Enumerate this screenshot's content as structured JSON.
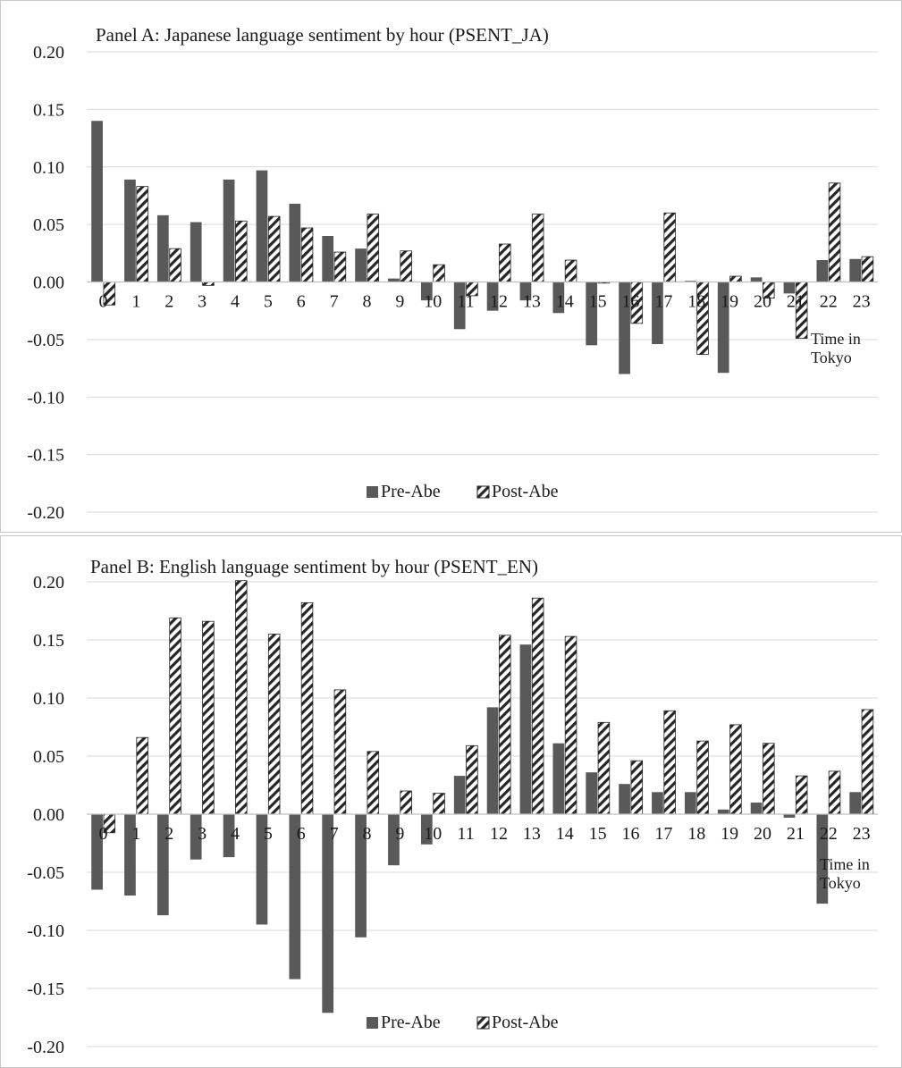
{
  "chart_data": [
    {
      "type": "bar",
      "title": "Panel A: Japanese language sentiment by hour (PSENT_JA)",
      "xlabel": "Time in Tokyo",
      "categories": [
        "0",
        "1",
        "2",
        "3",
        "4",
        "5",
        "6",
        "7",
        "8",
        "9",
        "10",
        "11",
        "12",
        "13",
        "14",
        "15",
        "16",
        "17",
        "18",
        "19",
        "20",
        "21",
        "22",
        "23"
      ],
      "ylim": [
        -0.2,
        0.2
      ],
      "yticks": [
        "0.20",
        "0.15",
        "0.10",
        "0.05",
        "0.00",
        "-0.05",
        "-0.10",
        "-0.15",
        "-0.20"
      ],
      "grid": true,
      "legend_position": "bottom",
      "series": [
        {
          "name": "Pre-Abe",
          "color": "#595959",
          "values": [
            0.14,
            0.089,
            0.058,
            0.052,
            0.089,
            0.097,
            0.068,
            0.04,
            0.029,
            0.003,
            -0.016,
            -0.041,
            -0.025,
            -0.016,
            -0.027,
            -0.055,
            -0.08,
            -0.054,
            0.001,
            -0.079,
            0.004,
            -0.01,
            0.019,
            0.02
          ]
        },
        {
          "name": "Post-Abe",
          "color": "#262626",
          "pattern": "hatch",
          "values": [
            -0.02,
            0.083,
            0.029,
            -0.003,
            0.053,
            0.057,
            0.047,
            0.026,
            0.059,
            0.027,
            0.015,
            -0.012,
            0.033,
            0.059,
            0.019,
            -0.001,
            -0.036,
            0.06,
            -0.063,
            0.005,
            -0.014,
            -0.049,
            0.086,
            0.022
          ]
        }
      ]
    },
    {
      "type": "bar",
      "title": "Panel B: English language sentiment by hour (PSENT_EN)",
      "xlabel": "Time in Tokyo",
      "categories": [
        "0",
        "1",
        "2",
        "3",
        "4",
        "5",
        "6",
        "7",
        "8",
        "9",
        "10",
        "11",
        "12",
        "13",
        "14",
        "15",
        "16",
        "17",
        "18",
        "19",
        "20",
        "21",
        "22",
        "23"
      ],
      "ylim": [
        -0.2,
        0.2
      ],
      "yticks": [
        "0.20",
        "0.15",
        "0.10",
        "0.05",
        "0.00",
        "-0.05",
        "-0.10",
        "-0.15",
        "-0.20"
      ],
      "grid": true,
      "legend_position": "bottom",
      "series": [
        {
          "name": "Pre-Abe",
          "color": "#595959",
          "values": [
            -0.065,
            -0.07,
            -0.087,
            -0.039,
            -0.037,
            -0.095,
            -0.142,
            -0.171,
            -0.106,
            -0.044,
            -0.026,
            0.033,
            0.092,
            0.146,
            0.061,
            0.036,
            0.026,
            0.019,
            0.019,
            0.004,
            0.01,
            -0.003,
            -0.077,
            0.019
          ]
        },
        {
          "name": "Post-Abe",
          "color": "#262626",
          "pattern": "hatch",
          "values": [
            -0.016,
            0.066,
            0.169,
            0.166,
            0.201,
            0.155,
            0.182,
            0.107,
            0.054,
            0.02,
            0.018,
            0.059,
            0.154,
            0.186,
            0.153,
            0.079,
            0.046,
            0.089,
            0.063,
            0.077,
            0.061,
            0.033,
            0.037,
            0.09
          ]
        }
      ]
    }
  ]
}
